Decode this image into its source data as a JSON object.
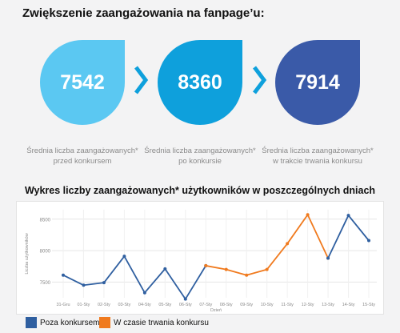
{
  "header": {
    "title": "Zwiększenie zaangażowania na fanpage’u:"
  },
  "stats": [
    {
      "value": "7542",
      "color": "#5bc8f2",
      "caption_line1": "Średnia liczba zaangażowanych*",
      "caption_line2": "przed konkursem"
    },
    {
      "value": "8360",
      "color": "#0ea0dc",
      "caption_line1": "Średnia liczba zaangażowanych*",
      "caption_line2": "po konkursie"
    },
    {
      "value": "7914",
      "color": "#3a5aa8",
      "caption_line1": "Średnia liczba zaangażowanych*",
      "caption_line2": "w trakcie trwania konkursu"
    }
  ],
  "colors": {
    "chevron": "#0ea0dc",
    "before": "#2f5fa0",
    "during": "#f07a1e"
  },
  "chart_data": {
    "type": "line",
    "title": "Wykres liczby zaangażowanych* użytkowników w poszczególnych dniach",
    "xlabel": "Dzień",
    "ylabel": "Liczba użytkowników",
    "categories": [
      "31-Gru",
      "01-Sty",
      "02-Sty",
      "03-Sty",
      "04-Sty",
      "05-Sty",
      "06-Sty",
      "07-Sty",
      "08-Sty",
      "09-Sty",
      "10-Sty",
      "11-Sty",
      "12-Sty",
      "13-Sty",
      "14-Sty",
      "15-Sty"
    ],
    "ylim": [
      7250,
      8650
    ],
    "yticks": [
      "7500",
      "8000",
      "8500"
    ],
    "grid": true,
    "legend_position": "bottom-left",
    "series": [
      {
        "name": "Poza konkursem",
        "values": [
          7610,
          7450,
          7490,
          7910,
          7330,
          7710,
          7230,
          7760,
          null,
          null,
          null,
          null,
          null,
          null,
          null,
          null
        ]
      },
      {
        "name": "W czasie trwania konkursu",
        "values": [
          null,
          null,
          null,
          null,
          null,
          null,
          null,
          7760,
          7700,
          7610,
          7700,
          8110,
          8570,
          7880,
          null,
          null
        ]
      },
      {
        "name": "Poza konkursem",
        "values": [
          null,
          null,
          null,
          null,
          null,
          null,
          null,
          null,
          null,
          null,
          null,
          null,
          null,
          7880,
          8560,
          8160
        ]
      }
    ]
  },
  "legend": {
    "items": [
      "Poza konkursem",
      "W czasie trwania konkursu"
    ]
  }
}
